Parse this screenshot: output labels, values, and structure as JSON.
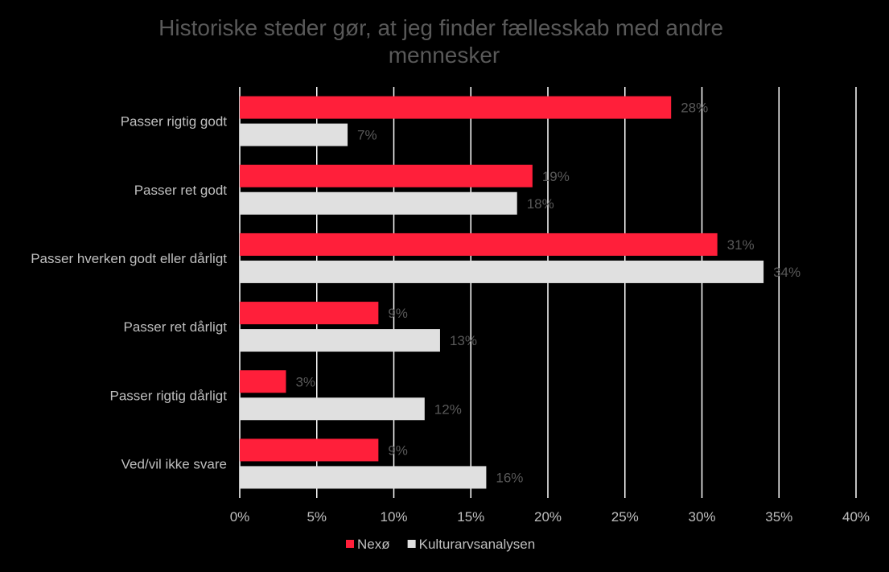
{
  "chart_data": {
    "type": "bar",
    "orientation": "horizontal",
    "title": "Historiske steder gør, at jeg finder fællesskab med andre mennesker",
    "title_lines": [
      "Historiske steder gør, at jeg finder fællesskab med andre",
      "mennesker"
    ],
    "categories": [
      "Passer rigtig godt",
      "Passer ret godt",
      "Passer hverken godt eller dårligt",
      "Passer ret dårligt",
      "Passer rigtig dårligt",
      "Ved/vil ikke svare"
    ],
    "series": [
      {
        "name": "Nexø",
        "color": "#ff1f3a",
        "values": [
          28,
          19,
          31,
          9,
          3,
          9
        ],
        "labels": [
          "28%",
          "19%",
          "31%",
          "9%",
          "3%",
          "9%"
        ]
      },
      {
        "name": "Kulturarvsanalysen",
        "color": "#e0e0e0",
        "values": [
          7,
          18,
          34,
          13,
          12,
          16
        ],
        "labels": [
          "7%",
          "18%",
          "34%",
          "13%",
          "12%",
          "16%"
        ]
      }
    ],
    "xlim": [
      0,
      40
    ],
    "xticks": [
      0,
      5,
      10,
      15,
      20,
      25,
      30,
      35,
      40
    ],
    "xtick_labels": [
      "0%",
      "5%",
      "10%",
      "15%",
      "20%",
      "25%",
      "30%",
      "35%",
      "40%"
    ],
    "grid": "vertical",
    "legend_position": "bottom"
  }
}
